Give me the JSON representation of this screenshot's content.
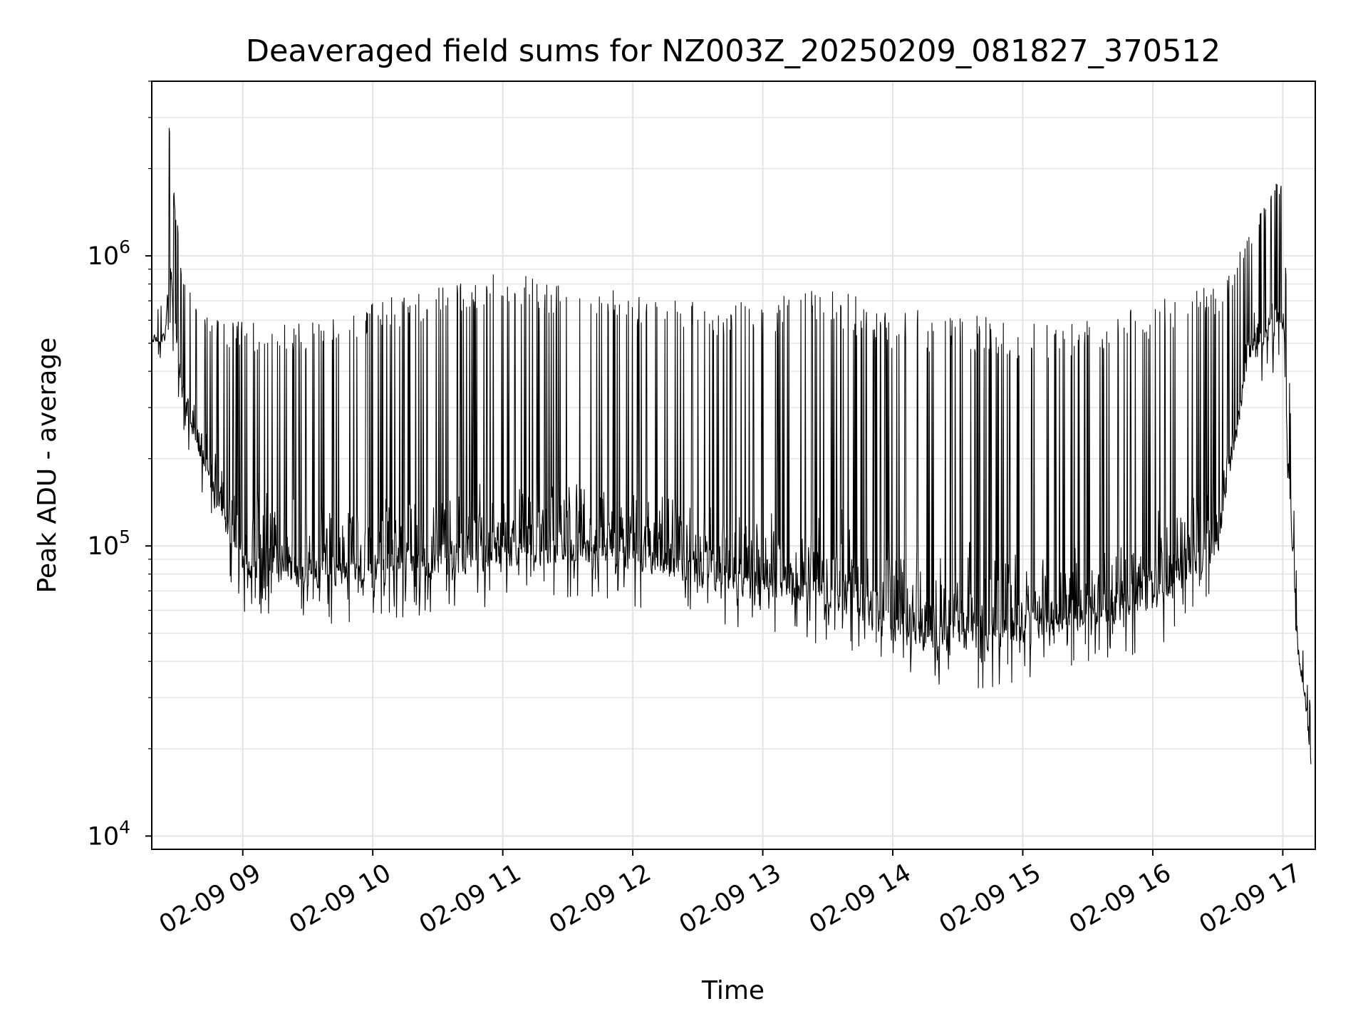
{
  "chart_data": {
    "type": "line",
    "title": "Deaveraged field sums for NZ003Z_20250209_081827_370512",
    "xlabel": "Time",
    "ylabel": "Peak ADU - average",
    "y_scale": "log",
    "ylim": [
      9000,
      4000000
    ],
    "xlim": [
      "2025-02-09 08:18",
      "2025-02-09 17:15"
    ],
    "grid": true,
    "line_color": "#000000",
    "x_tick_labels": [
      "02-09 09",
      "02-09 10",
      "02-09 11",
      "02-09 12",
      "02-09 13",
      "02-09 14",
      "02-09 15",
      "02-09 16",
      "02-09 17"
    ],
    "x_ticks": [
      "2025-02-09 09:00",
      "2025-02-09 10:00",
      "2025-02-09 11:00",
      "2025-02-09 12:00",
      "2025-02-09 13:00",
      "2025-02-09 14:00",
      "2025-02-09 15:00",
      "2025-02-09 16:00",
      "2025-02-09 17:00"
    ],
    "y_ticks": [
      {
        "value": 10000,
        "base": "10",
        "exp": "4"
      },
      {
        "value": 100000,
        "base": "10",
        "exp": "5"
      },
      {
        "value": 1000000,
        "base": "10",
        "exp": "6"
      }
    ],
    "series": [
      {
        "x": [
          "2025-02-09 08:18",
          "2025-02-09 08:24",
          "2025-02-09 08:26",
          "2025-02-09 08:28",
          "2025-02-09 08:32",
          "2025-02-09 08:40",
          "2025-02-09 08:50",
          "2025-02-09 09:00",
          "2025-02-09 09:30",
          "2025-02-09 10:00",
          "2025-02-09 10:30",
          "2025-02-09 11:00",
          "2025-02-09 11:30",
          "2025-02-09 12:00",
          "2025-02-09 12:30",
          "2025-02-09 13:00",
          "2025-02-09 13:30",
          "2025-02-09 14:00",
          "2025-02-09 14:30",
          "2025-02-09 15:00",
          "2025-02-09 15:30",
          "2025-02-09 16:00",
          "2025-02-09 16:30",
          "2025-02-09 16:45",
          "2025-02-09 17:00",
          "2025-02-09 17:03",
          "2025-02-09 17:07",
          "2025-02-09 17:10",
          "2025-02-09 17:13"
        ],
        "low": [
          500000,
          500000,
          800000,
          600000,
          300000,
          200000,
          110000,
          75000,
          70000,
          72000,
          75000,
          82000,
          85000,
          80000,
          70000,
          65000,
          60000,
          45000,
          40000,
          45000,
          50000,
          55000,
          90000,
          450000,
          550000,
          150000,
          40000,
          30000,
          17000
        ],
        "high": [
          650000,
          700000,
          3000000,
          1800000,
          900000,
          700000,
          600000,
          600000,
          600000,
          700000,
          800000,
          900000,
          800000,
          750000,
          700000,
          700000,
          800000,
          650000,
          650000,
          600000,
          600000,
          700000,
          800000,
          1200000,
          2000000,
          400000,
          60000,
          40000,
          28000
        ]
      }
    ]
  }
}
